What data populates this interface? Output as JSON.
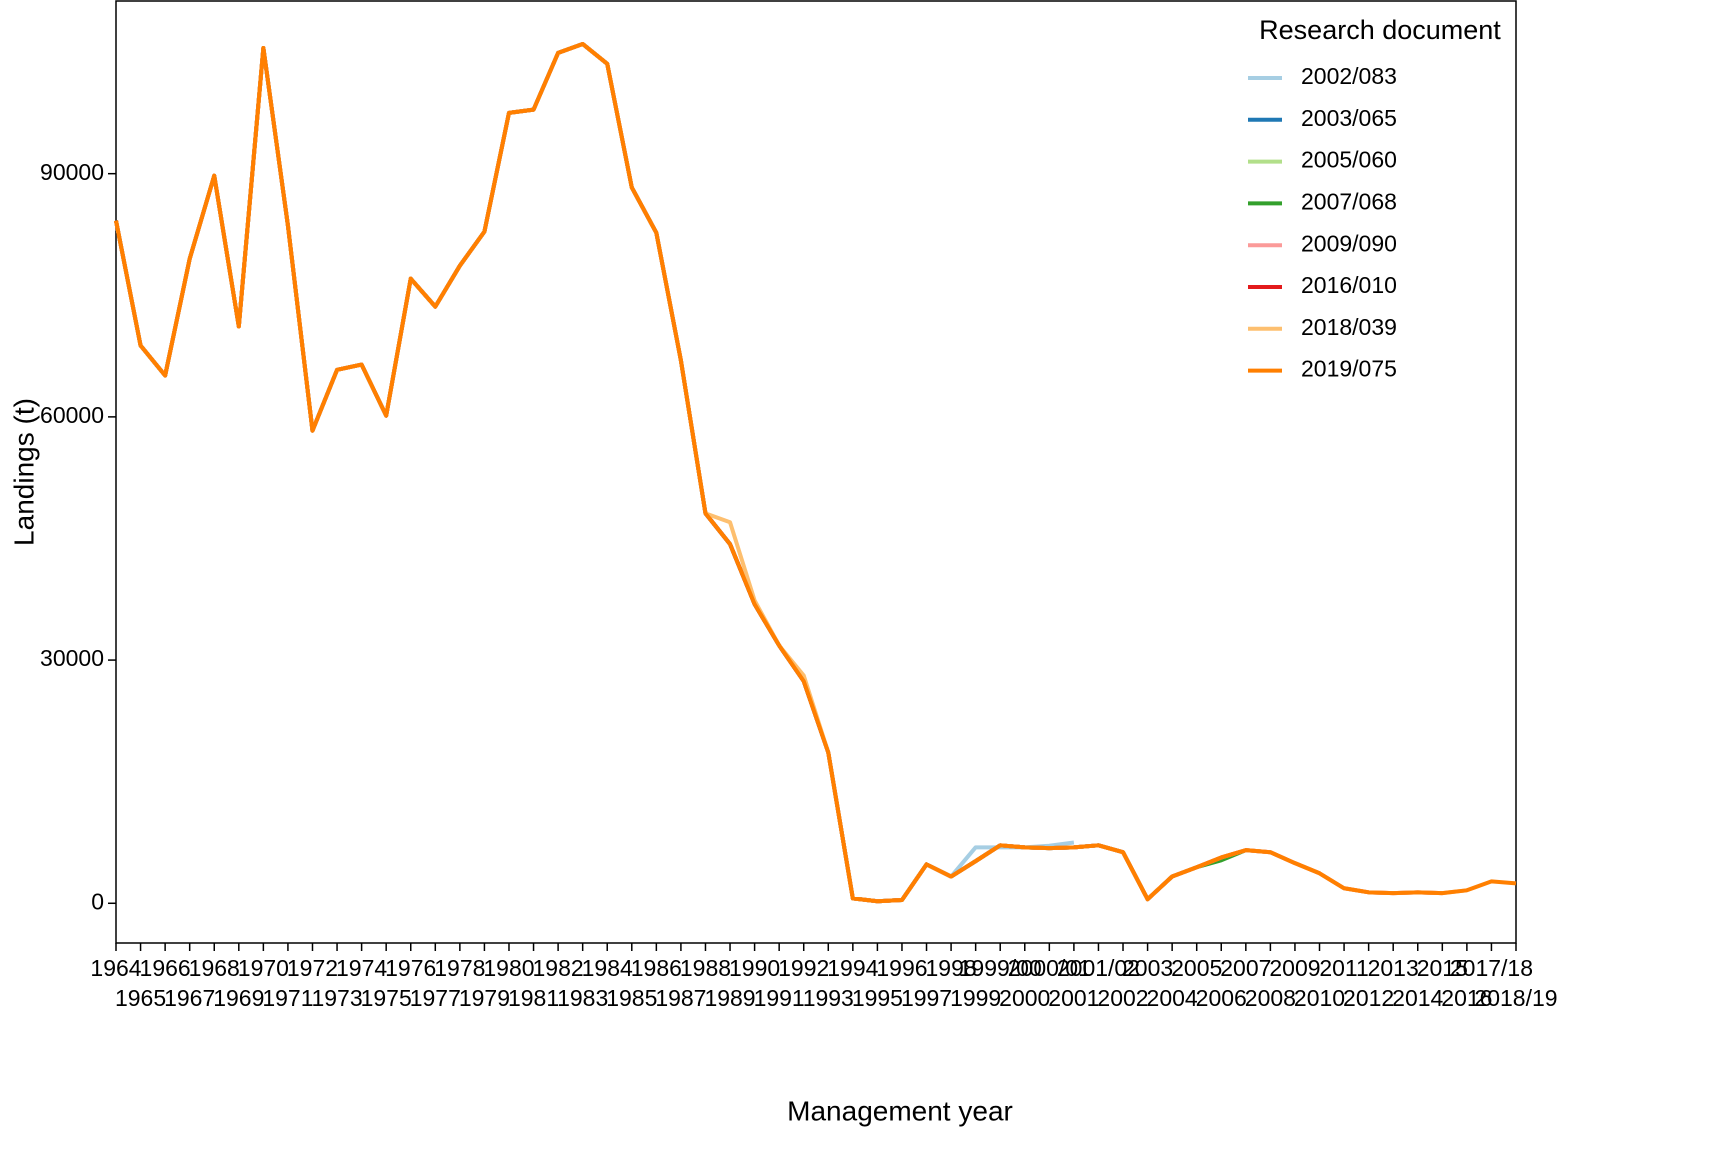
{
  "chart_data": {
    "type": "line",
    "x_label": "Management year",
    "y_label": "Landings (t)",
    "legend_title": "Research document",
    "legend_position": "top-right",
    "categories": [
      "1964",
      "1965",
      "1966",
      "1967",
      "1968",
      "1969",
      "1970",
      "1971",
      "1972",
      "1973",
      "1974",
      "1975",
      "1976",
      "1977",
      "1978",
      "1979",
      "1980",
      "1981",
      "1982",
      "1983",
      "1984",
      "1985",
      "1986",
      "1987",
      "1988",
      "1989",
      "1990",
      "1991",
      "1992",
      "1993",
      "1994",
      "1995",
      "1996",
      "1997",
      "1998",
      "1999",
      "1999/00",
      "2000",
      "2000/01",
      "2001",
      "2001/02",
      "2002",
      "2003",
      "2004",
      "2005",
      "2006",
      "2007",
      "2008",
      "2009",
      "2010",
      "2011",
      "2012",
      "2013",
      "2014",
      "2015",
      "2016",
      "2017/18",
      "2018/19"
    ],
    "ylim": [
      -4900,
      111300
    ],
    "yticks": [
      0,
      30000,
      60000,
      90000
    ],
    "series": [
      {
        "name": "2002/083",
        "color": "#a6cee3",
        "values": [
          84200,
          68800,
          65100,
          79500,
          89750,
          71150,
          105500,
          83600,
          58300,
          65800,
          66450,
          60150,
          77050,
          73600,
          78650,
          82850,
          97500,
          97900,
          104900,
          106000,
          103550,
          88300,
          82700,
          66950,
          48100,
          44300,
          36900,
          31800,
          27400,
          18600,
          600,
          250,
          400,
          4800,
          3300,
          6900,
          6900,
          6900,
          7100,
          7500,
          null,
          null,
          null,
          null,
          null,
          null,
          null,
          null,
          null,
          null,
          null,
          null,
          null,
          null,
          null,
          null,
          null,
          null
        ]
      },
      {
        "name": "2003/065",
        "color": "#1f78b4",
        "values": [
          84200,
          68800,
          65100,
          79500,
          89750,
          71150,
          105500,
          83600,
          58300,
          65800,
          66450,
          60150,
          77050,
          73600,
          78650,
          82850,
          97500,
          97900,
          104900,
          106000,
          103550,
          88300,
          82700,
          66950,
          48100,
          44300,
          36900,
          31800,
          27400,
          18600,
          600,
          250,
          400,
          4800,
          3300,
          5200,
          7150,
          6900,
          6800,
          6900,
          7150,
          6300,
          null,
          null,
          null,
          null,
          null,
          null,
          null,
          null,
          null,
          null,
          null,
          null,
          null,
          null,
          null,
          null
        ]
      },
      {
        "name": "2005/060",
        "color": "#b2df8a",
        "values": [
          84200,
          68800,
          65100,
          79500,
          89750,
          71150,
          105500,
          83600,
          58300,
          65800,
          66450,
          60150,
          77050,
          73600,
          78650,
          82850,
          97500,
          97900,
          104900,
          106000,
          103550,
          88300,
          82700,
          66950,
          48100,
          44300,
          36900,
          31800,
          27400,
          18600,
          600,
          250,
          400,
          4800,
          3300,
          5200,
          7150,
          6900,
          6800,
          6900,
          7150,
          6300,
          500,
          3300,
          null,
          null,
          null,
          null,
          null,
          null,
          null,
          null,
          null,
          null,
          null,
          null,
          null,
          null
        ]
      },
      {
        "name": "2007/068",
        "color": "#33a02c",
        "values": [
          84200,
          68800,
          65100,
          79500,
          89750,
          71150,
          105500,
          83600,
          58300,
          65800,
          66450,
          60150,
          77050,
          73600,
          78650,
          82850,
          97500,
          97900,
          104900,
          106000,
          103550,
          88300,
          82700,
          66950,
          48100,
          44300,
          36900,
          31800,
          27400,
          18600,
          600,
          250,
          400,
          4800,
          3300,
          5200,
          7150,
          6900,
          6800,
          6900,
          7150,
          6300,
          500,
          3300,
          4450,
          5300,
          6550,
          null,
          null,
          null,
          null,
          null,
          null,
          null,
          null,
          null,
          null,
          null
        ]
      },
      {
        "name": "2009/090",
        "color": "#fb9a99",
        "values": [
          84200,
          68800,
          65100,
          79500,
          89750,
          71150,
          105500,
          83600,
          58300,
          65800,
          66450,
          60150,
          77050,
          73600,
          78650,
          82850,
          97500,
          97900,
          104900,
          106000,
          103550,
          88300,
          82700,
          66950,
          48100,
          44300,
          36900,
          31800,
          27400,
          18600,
          600,
          250,
          400,
          4800,
          3300,
          5200,
          7150,
          6900,
          6800,
          6900,
          7150,
          6300,
          500,
          3300,
          4450,
          5650,
          6550,
          6300,
          4950,
          null,
          null,
          null,
          null,
          null,
          null,
          null,
          null,
          null
        ]
      },
      {
        "name": "2016/010",
        "color": "#e31a1c",
        "values": [
          84200,
          68800,
          65100,
          79500,
          89750,
          71150,
          105500,
          83600,
          58300,
          65800,
          66450,
          60150,
          77050,
          73600,
          78650,
          82850,
          97500,
          97900,
          104900,
          106000,
          103550,
          88300,
          82700,
          66950,
          48100,
          44300,
          36900,
          31800,
          27400,
          18600,
          600,
          250,
          400,
          4800,
          3300,
          5200,
          7150,
          6900,
          6800,
          6900,
          7150,
          6300,
          500,
          3300,
          4450,
          5650,
          6550,
          6300,
          4950,
          3700,
          1850,
          1350,
          1250,
          1350,
          1250,
          null,
          null,
          null
        ]
      },
      {
        "name": "2018/039",
        "color": "#fdbf6f",
        "values": [
          84200,
          68800,
          65100,
          79500,
          89750,
          71150,
          105500,
          83600,
          58300,
          65800,
          66450,
          60150,
          77050,
          73600,
          78650,
          82850,
          97500,
          97900,
          104900,
          106000,
          103550,
          88300,
          82700,
          66950,
          48100,
          47000,
          37350,
          31800,
          28100,
          18600,
          600,
          250,
          400,
          4800,
          3300,
          5200,
          7150,
          6900,
          6800,
          6900,
          7150,
          6300,
          500,
          3300,
          4450,
          5650,
          6550,
          6300,
          4950,
          3700,
          1850,
          1350,
          1250,
          1350,
          1250,
          1600,
          null,
          null
        ]
      },
      {
        "name": "2019/075",
        "color": "#ff7f00",
        "values": [
          84200,
          68800,
          65100,
          79500,
          89750,
          71150,
          105500,
          83600,
          58300,
          65800,
          66450,
          60150,
          77050,
          73600,
          78650,
          82850,
          97500,
          97900,
          104900,
          106000,
          103550,
          88300,
          82700,
          66950,
          48100,
          44300,
          36900,
          31800,
          27400,
          18600,
          600,
          250,
          400,
          4800,
          3300,
          5200,
          7150,
          6900,
          6800,
          6900,
          7150,
          6300,
          500,
          3300,
          4450,
          5650,
          6550,
          6300,
          4950,
          3700,
          1850,
          1350,
          1250,
          1350,
          1250,
          1600,
          2700,
          2450
        ]
      }
    ]
  }
}
